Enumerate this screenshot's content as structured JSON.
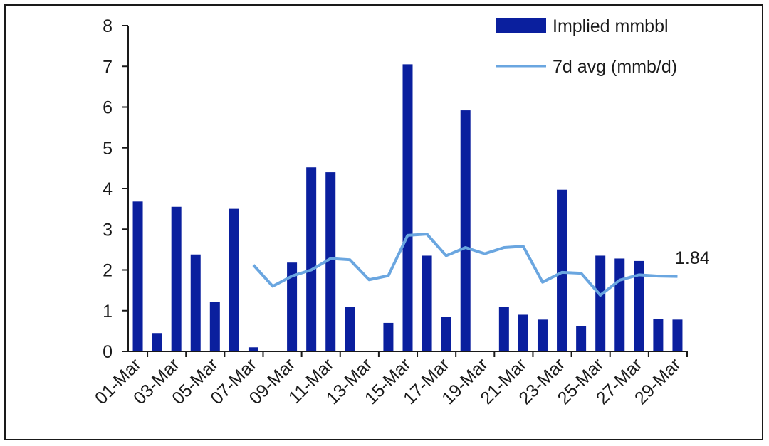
{
  "chart_data": {
    "type": "bar",
    "x": [
      "01-Mar",
      "02-Mar",
      "03-Mar",
      "04-Mar",
      "05-Mar",
      "06-Mar",
      "07-Mar",
      "08-Mar",
      "09-Mar",
      "10-Mar",
      "11-Mar",
      "12-Mar",
      "13-Mar",
      "14-Mar",
      "15-Mar",
      "16-Mar",
      "17-Mar",
      "18-Mar",
      "19-Mar",
      "20-Mar",
      "21-Mar",
      "22-Mar",
      "23-Mar",
      "24-Mar",
      "25-Mar",
      "26-Mar",
      "27-Mar",
      "28-Mar",
      "29-Mar"
    ],
    "x_tick_labels": [
      "01-Mar",
      "03-Mar",
      "05-Mar",
      "07-Mar",
      "09-Mar",
      "11-Mar",
      "13-Mar",
      "15-Mar",
      "17-Mar",
      "19-Mar",
      "21-Mar",
      "23-Mar",
      "25-Mar",
      "27-Mar",
      "29-Mar"
    ],
    "series": [
      {
        "name": "Implied mmbbl",
        "type": "bar",
        "color": "#0a1f9e",
        "values": [
          3.68,
          0.45,
          3.55,
          2.38,
          1.22,
          3.5,
          0.1,
          0,
          2.18,
          4.52,
          4.4,
          1.1,
          0,
          0.7,
          7.05,
          2.35,
          0.85,
          5.92,
          0,
          1.1,
          0.9,
          0.78,
          3.97,
          0.62,
          2.35,
          2.28,
          2.22,
          0.8,
          0.78
        ]
      },
      {
        "name": "7d avg (mmb/d)",
        "type": "line",
        "color": "#6aa6e0",
        "values": [
          null,
          null,
          null,
          null,
          null,
          null,
          2.12,
          1.6,
          1.85,
          2.0,
          2.28,
          2.25,
          1.76,
          1.86,
          2.85,
          2.88,
          2.35,
          2.55,
          2.4,
          2.55,
          2.58,
          1.7,
          1.94,
          1.92,
          1.38,
          1.75,
          1.88,
          1.85,
          1.84
        ]
      }
    ],
    "end_annotation": "1.84",
    "y_ticks": [
      "0",
      "1",
      "2",
      "3",
      "4",
      "5",
      "6",
      "7",
      "8"
    ],
    "ylim": [
      0,
      8
    ],
    "grid": false,
    "legend_position": "top-right"
  }
}
